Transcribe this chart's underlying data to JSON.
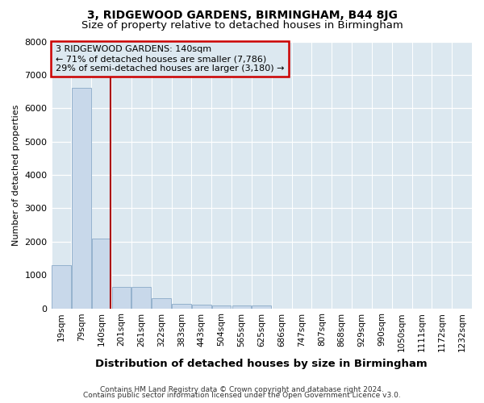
{
  "title": "3, RIDGEWOOD GARDENS, BIRMINGHAM, B44 8JG",
  "subtitle": "Size of property relative to detached houses in Birmingham",
  "xlabel": "Distribution of detached houses by size in Birmingham",
  "ylabel": "Number of detached properties",
  "footnote1": "Contains HM Land Registry data © Crown copyright and database right 2024.",
  "footnote2": "Contains public sector information licensed under the Open Government Licence v3.0.",
  "categories": [
    "19sqm",
    "79sqm",
    "140sqm",
    "201sqm",
    "261sqm",
    "322sqm",
    "383sqm",
    "443sqm",
    "504sqm",
    "565sqm",
    "625sqm",
    "686sqm",
    "747sqm",
    "807sqm",
    "868sqm",
    "929sqm",
    "990sqm",
    "1050sqm",
    "1111sqm",
    "1172sqm",
    "1232sqm"
  ],
  "values": [
    1300,
    6600,
    2100,
    630,
    630,
    300,
    140,
    100,
    80,
    80,
    80,
    0,
    0,
    0,
    0,
    0,
    0,
    0,
    0,
    0,
    0
  ],
  "bar_color": "#c8d8ea",
  "bar_edge_color": "#8aaac8",
  "highlight_bar_index": 2,
  "highlight_line_color": "#aa0000",
  "ylim": [
    0,
    8000
  ],
  "yticks": [
    0,
    1000,
    2000,
    3000,
    4000,
    5000,
    6000,
    7000,
    8000
  ],
  "annotation_line1": "3 RIDGEWOOD GARDENS: 140sqm",
  "annotation_line2": "← 71% of detached houses are smaller (7,786)",
  "annotation_line3": "29% of semi-detached houses are larger (3,180) →",
  "annotation_box_color": "#cc0000",
  "fig_bg_color": "#ffffff",
  "plot_bg_color": "#dce8f0",
  "grid_color": "#ffffff",
  "title_fontsize": 10,
  "subtitle_fontsize": 9.5,
  "xlabel_fontsize": 9.5,
  "ylabel_fontsize": 8,
  "tick_fontsize": 7.5,
  "footnote_fontsize": 6.5
}
